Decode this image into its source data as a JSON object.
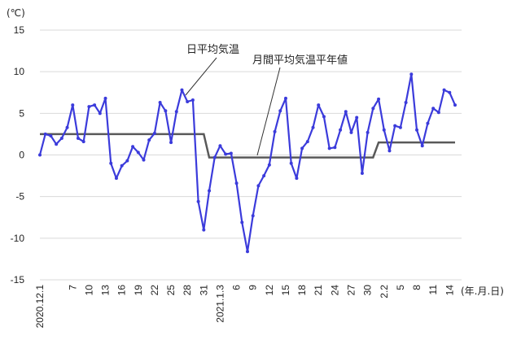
{
  "chart_data": {
    "type": "line",
    "y_unit_label": "(℃)",
    "x_unit_label": "(年.月.日)",
    "ylim": [
      -15,
      15
    ],
    "yticks": [
      15,
      10,
      5,
      0,
      -5,
      -10,
      -15
    ],
    "grid": "horizontal",
    "x_tick_labels": [
      {
        "i": 0,
        "label": "2020.12.1"
      },
      {
        "i": 6,
        "label": "7"
      },
      {
        "i": 9,
        "label": "10"
      },
      {
        "i": 12,
        "label": "13"
      },
      {
        "i": 15,
        "label": "16"
      },
      {
        "i": 18,
        "label": "19"
      },
      {
        "i": 21,
        "label": "22"
      },
      {
        "i": 24,
        "label": "25"
      },
      {
        "i": 27,
        "label": "28"
      },
      {
        "i": 30,
        "label": "31"
      },
      {
        "i": 33,
        "label": "2021.1.3"
      },
      {
        "i": 36,
        "label": "6"
      },
      {
        "i": 39,
        "label": "9"
      },
      {
        "i": 42,
        "label": "12"
      },
      {
        "i": 45,
        "label": "15"
      },
      {
        "i": 48,
        "label": "18"
      },
      {
        "i": 51,
        "label": "21"
      },
      {
        "i": 54,
        "label": "24"
      },
      {
        "i": 57,
        "label": "27"
      },
      {
        "i": 60,
        "label": "30"
      },
      {
        "i": 63,
        "label": "2.2"
      },
      {
        "i": 66,
        "label": "5"
      },
      {
        "i": 69,
        "label": "8"
      },
      {
        "i": 72,
        "label": "11"
      },
      {
        "i": 75,
        "label": "14"
      }
    ],
    "series": [
      {
        "name": "日平均気温",
        "color": "#3b3bdb",
        "values": [
          0.0,
          2.5,
          2.3,
          1.3,
          2.0,
          3.3,
          6.0,
          2.0,
          1.6,
          5.8,
          6.0,
          5.0,
          6.8,
          -1.0,
          -2.8,
          -1.3,
          -0.7,
          1.0,
          0.3,
          -0.6,
          1.8,
          2.6,
          6.3,
          5.3,
          1.5,
          5.2,
          7.8,
          6.4,
          6.6,
          -5.6,
          -9.0,
          -4.3,
          -0.3,
          1.1,
          0.1,
          0.2,
          -3.4,
          -8.1,
          -11.6,
          -7.3,
          -3.7,
          -2.5,
          -1.2,
          2.8,
          5.3,
          6.8,
          -1.0,
          -2.8,
          0.8,
          1.6,
          3.3,
          6.0,
          4.6,
          0.8,
          0.9,
          3.0,
          5.2,
          2.7,
          4.5,
          -2.2,
          2.7,
          5.6,
          6.7,
          3.0,
          0.5,
          3.5,
          3.3,
          6.3,
          9.7,
          3.0,
          1.1,
          3.8,
          5.6,
          5.1,
          7.8,
          7.5,
          6.0
        ]
      },
      {
        "name": "月間平均気温平年値",
        "color": "#595959",
        "values": [
          2.5,
          2.5,
          2.5,
          2.5,
          2.5,
          2.5,
          2.5,
          2.5,
          2.5,
          2.5,
          2.5,
          2.5,
          2.5,
          2.5,
          2.5,
          2.5,
          2.5,
          2.5,
          2.5,
          2.5,
          2.5,
          2.5,
          2.5,
          2.5,
          2.5,
          2.5,
          2.5,
          2.5,
          2.5,
          2.5,
          2.5,
          -0.3,
          -0.3,
          -0.3,
          -0.3,
          -0.3,
          -0.3,
          -0.3,
          -0.3,
          -0.3,
          -0.3,
          -0.3,
          -0.3,
          -0.3,
          -0.3,
          -0.3,
          -0.3,
          -0.3,
          -0.3,
          -0.3,
          -0.3,
          -0.3,
          -0.3,
          -0.3,
          -0.3,
          -0.3,
          -0.3,
          -0.3,
          -0.3,
          -0.3,
          -0.3,
          -0.3,
          1.5,
          1.5,
          1.5,
          1.5,
          1.5,
          1.5,
          1.5,
          1.5,
          1.5,
          1.5,
          1.5,
          1.5,
          1.5,
          1.5,
          1.5
        ]
      }
    ]
  }
}
